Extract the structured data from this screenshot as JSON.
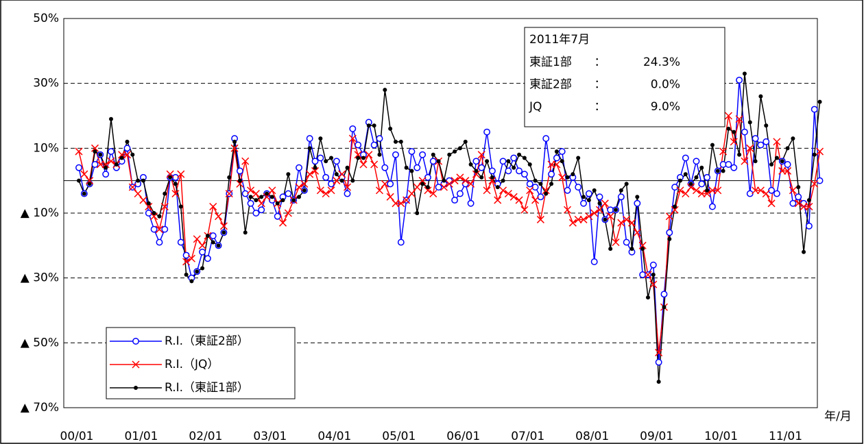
{
  "chart_data": {
    "type": "line",
    "categories": [
      "00/01",
      null,
      null,
      null,
      null,
      null,
      null,
      null,
      null,
      null,
      null,
      null,
      "01/01",
      null,
      null,
      null,
      null,
      null,
      null,
      null,
      null,
      null,
      null,
      null,
      "02/01",
      null,
      null,
      null,
      null,
      null,
      null,
      null,
      null,
      null,
      null,
      null,
      "03/01",
      null,
      null,
      null,
      null,
      null,
      null,
      null,
      null,
      null,
      null,
      null,
      "04/01",
      null,
      null,
      null,
      null,
      null,
      null,
      null,
      null,
      null,
      null,
      null,
      "05/01",
      null,
      null,
      null,
      null,
      null,
      null,
      null,
      null,
      null,
      null,
      null,
      "06/01",
      null,
      null,
      null,
      null,
      null,
      null,
      null,
      null,
      null,
      null,
      null,
      "07/01",
      null,
      null,
      null,
      null,
      null,
      null,
      null,
      null,
      null,
      null,
      null,
      "08/01",
      null,
      null,
      null,
      null,
      null,
      null,
      null,
      null,
      null,
      null,
      null,
      "09/01",
      null,
      null,
      null,
      null,
      null,
      null,
      null,
      null,
      null,
      null,
      null,
      "10/01",
      null,
      null,
      null,
      null,
      null,
      null,
      null,
      null,
      null,
      null,
      null,
      "11/01",
      null,
      null,
      null,
      null,
      null,
      null
    ],
    "x_label": "年/月",
    "series": [
      {
        "name": "R.I.（東証2部）",
        "color": "#0000ff",
        "marker": "circle",
        "values": [
          4,
          -4,
          -1,
          5,
          8,
          2,
          9,
          4,
          6,
          10,
          -2,
          -1,
          1,
          -10,
          -15,
          -19,
          -15,
          1,
          1,
          -19,
          -23,
          -30,
          -28,
          -22,
          -24,
          -17,
          -20,
          -16,
          -4,
          13,
          3,
          -4,
          -7,
          -10,
          -9,
          -4,
          -6,
          -11,
          -5,
          -4,
          -6,
          4,
          -3,
          13,
          6,
          7,
          1,
          -1,
          6,
          1,
          -4,
          16,
          11,
          8,
          18,
          11,
          13,
          4,
          -1,
          8,
          -19,
          -6,
          9,
          4,
          8,
          1,
          6,
          -2,
          -1,
          0,
          -6,
          -4,
          -1,
          -7,
          6,
          4,
          15,
          3,
          -1,
          6,
          3,
          7,
          3,
          2,
          -1,
          -2,
          -5,
          13,
          2,
          7,
          9,
          -3,
          1,
          -2,
          -7,
          -4,
          -25,
          -5,
          -12,
          -9,
          -9,
          -5,
          -19,
          -22,
          -7,
          -29,
          -29,
          -26,
          -56,
          -35,
          -16,
          -2,
          1,
          7,
          -1,
          6,
          -1,
          1,
          -8,
          3,
          5,
          5,
          4,
          31,
          15,
          -4,
          13,
          11,
          12,
          -3,
          -4,
          6,
          5,
          -7,
          -5,
          -7,
          -14,
          22,
          0
        ]
      },
      {
        "name": "R.I.（JQ）",
        "color": "#ff0000",
        "marker": "cross",
        "values": [
          9,
          2,
          0,
          10,
          5,
          5,
          6,
          5,
          8,
          8,
          -2,
          -4,
          -6,
          -8,
          -11,
          -15,
          -8,
          2,
          -4,
          2,
          -25,
          -24,
          -18,
          -20,
          -17,
          -8,
          -11,
          -14,
          -4,
          10,
          -1,
          6,
          -3,
          -4,
          -7,
          -5,
          -3,
          -7,
          -13,
          -10,
          -6,
          -2,
          -1,
          2,
          3,
          -3,
          -4,
          -3,
          0,
          2,
          -2,
          13,
          8,
          5,
          8,
          5,
          -3,
          -1,
          -5,
          -7,
          -7,
          -6,
          -4,
          -2,
          0,
          -3,
          -4,
          6,
          -2,
          -1,
          0,
          1,
          0,
          -1,
          2,
          8,
          -3,
          0,
          -6,
          -3,
          -4,
          -5,
          -6,
          -9,
          -3,
          -6,
          -12,
          -3,
          5,
          5,
          1,
          -9,
          -13,
          -12,
          -12,
          -11,
          -10,
          -9,
          -7,
          -11,
          -19,
          -13,
          -12,
          -13,
          -16,
          -20,
          -29,
          -32,
          -53,
          -39,
          -11,
          -9,
          -3,
          -4,
          -2,
          -3,
          -4,
          -4,
          -3,
          -3,
          9,
          20,
          12,
          19,
          6,
          10,
          -3,
          -3,
          -4,
          -7,
          12,
          3,
          3,
          -3,
          -7,
          -8,
          -8,
          -1,
          9.0
        ]
      },
      {
        "name": "R.I.（東証1部）",
        "color": "#000000",
        "marker": "dot",
        "values": [
          0,
          -4,
          -1,
          9,
          8,
          4,
          19,
          5,
          7,
          12,
          8,
          0,
          0,
          -7,
          -10,
          -11,
          -4,
          1,
          -1,
          -8,
          -29,
          -31,
          -28,
          -27,
          -17,
          -19,
          -20,
          -16,
          1,
          12,
          0,
          -16,
          -5,
          -6,
          -5,
          -4,
          -5,
          -7,
          -6,
          2,
          -6,
          -5,
          -3,
          10,
          4,
          13,
          6,
          7,
          2,
          0,
          4,
          0,
          7,
          7,
          17,
          17,
          8,
          28,
          16,
          12,
          12,
          4,
          3,
          -10,
          -1,
          -2,
          8,
          6,
          0,
          8,
          9,
          10,
          12,
          5,
          3,
          1,
          6,
          1,
          -2,
          0,
          6,
          4,
          8,
          7,
          5,
          0,
          -1,
          -4,
          -1,
          9,
          6,
          1,
          2,
          7,
          -5,
          -6,
          -3,
          -7,
          -12,
          -21,
          -9,
          -3,
          -1,
          -21,
          -5,
          -21,
          -36,
          -29,
          -62,
          -39,
          -18,
          -8,
          0,
          2,
          -1,
          1,
          4,
          -3,
          11,
          3,
          3,
          16,
          15,
          8,
          33,
          18,
          6,
          26,
          17,
          5,
          7,
          6,
          10,
          13,
          -2,
          -22,
          -6,
          8,
          24.3
        ]
      }
    ],
    "ylim": [
      -70,
      50
    ],
    "yticks": [
      {
        "value": 50,
        "label": "50%"
      },
      {
        "value": 30,
        "label": "30%"
      },
      {
        "value": 10,
        "label": "10%"
      },
      {
        "value": -10,
        "label": "▲ 10%"
      },
      {
        "value": -30,
        "label": "▲ 30%"
      },
      {
        "value": -50,
        "label": "▲ 50%"
      },
      {
        "value": -70,
        "label": "▲ 70%"
      }
    ],
    "grid": true,
    "legend": "lower left",
    "annotation": {
      "title": "2011年7月",
      "rows": [
        {
          "label": "東証1部",
          "sep": "：",
          "value": "24.3%"
        },
        {
          "label": "東証2部",
          "sep": "：",
          "value": "0.0%"
        },
        {
          "label": "JQ",
          "sep": "：",
          "value": "9.0%"
        }
      ]
    }
  }
}
